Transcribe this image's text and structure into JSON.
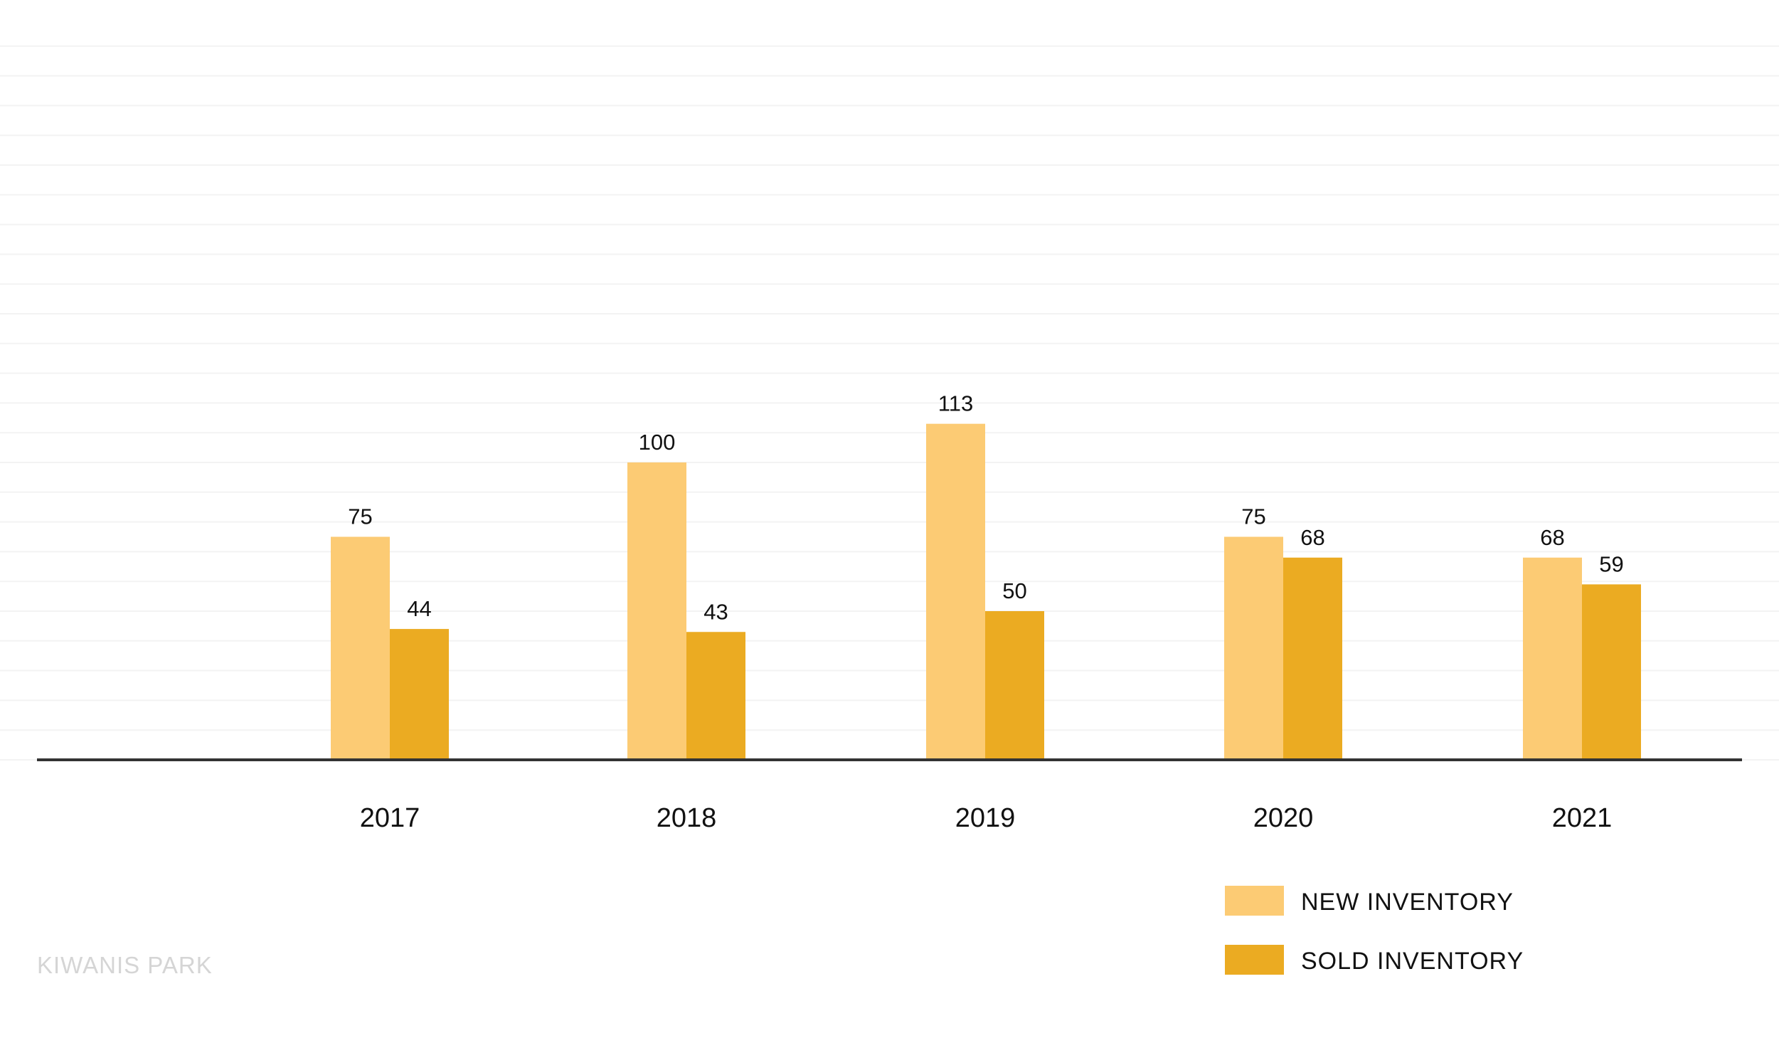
{
  "chart_data": {
    "type": "bar",
    "title": "",
    "xlabel": "",
    "ylabel": "",
    "categories": [
      "2017",
      "2018",
      "2019",
      "2020",
      "2021"
    ],
    "series": [
      {
        "name": "NEW INVENTORY",
        "values": [
          75,
          100,
          113,
          75,
          68
        ],
        "color": "#fccb74"
      },
      {
        "name": "SOLD INVENTORY",
        "values": [
          44,
          43,
          50,
          68,
          59
        ],
        "color": "#ebab22"
      }
    ],
    "ylim": [
      0,
      240
    ],
    "grid": true,
    "show_y_axis": false,
    "data_labels": true,
    "legend_position": "bottom-right"
  },
  "footer": {
    "label": "KIWANIS PARK"
  }
}
